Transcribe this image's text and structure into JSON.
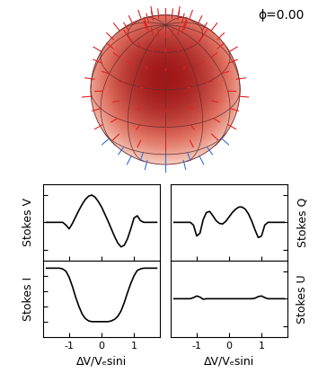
{
  "phase_label": "ϕ=0.00",
  "chart_data": [
    {
      "type": "line",
      "y_label": "Stokes V",
      "color": "#000000",
      "tick_labels": false,
      "x": [
        -1.7,
        -1.6,
        -1.5,
        -1.4,
        -1.3,
        -1.2,
        -1.1,
        -1.0,
        -0.9,
        -0.8,
        -0.7,
        -0.6,
        -0.5,
        -0.4,
        -0.3,
        -0.2,
        -0.1,
        0,
        0.1,
        0.2,
        0.3,
        0.4,
        0.5,
        0.6,
        0.7,
        0.8,
        0.9,
        1.0,
        1.1,
        1.2,
        1.3,
        1.4,
        1.5,
        1.6,
        1.7
      ],
      "values": [
        0,
        0,
        0,
        0,
        0,
        0,
        -0.05,
        -0.12,
        -0.02,
        0.1,
        0.22,
        0.33,
        0.42,
        0.48,
        0.5,
        0.46,
        0.38,
        0.28,
        0.15,
        0.02,
        -0.12,
        -0.26,
        -0.38,
        -0.45,
        -0.42,
        -0.3,
        -0.12,
        0.08,
        0.12,
        0.03,
        0,
        0,
        0,
        0,
        0
      ],
      "xlim": [
        -1.8,
        1.8
      ],
      "xticks": [
        -1,
        0,
        1
      ],
      "ylim": [
        -0.7,
        0.7
      ],
      "yticks": [
        -0.5,
        0,
        0.5
      ]
    },
    {
      "type": "line",
      "y_label": "Stokes Q",
      "color": "#000000",
      "tick_labels": false,
      "x": [
        -1.7,
        -1.6,
        -1.5,
        -1.4,
        -1.3,
        -1.2,
        -1.1,
        -1.0,
        -0.9,
        -0.8,
        -0.7,
        -0.6,
        -0.5,
        -0.4,
        -0.3,
        -0.2,
        -0.1,
        0,
        0.1,
        0.2,
        0.3,
        0.4,
        0.5,
        0.6,
        0.7,
        0.8,
        0.9,
        1.0,
        1.1,
        1.2,
        1.3,
        1.4,
        1.5,
        1.6,
        1.7
      ],
      "values": [
        0,
        0,
        0,
        0,
        0,
        0,
        -0.05,
        -0.25,
        -0.2,
        0.05,
        0.18,
        0.2,
        0.12,
        0.03,
        -0.02,
        -0.03,
        0.02,
        0.1,
        0.18,
        0.24,
        0.28,
        0.28,
        0.24,
        0.15,
        0.02,
        -0.14,
        -0.28,
        -0.25,
        -0.05,
        0,
        0,
        0,
        0,
        0,
        0
      ],
      "xlim": [
        -1.8,
        1.8
      ],
      "xticks": [
        -1,
        0,
        1
      ],
      "ylim": [
        -0.7,
        0.7
      ],
      "yticks": [
        -0.5,
        0,
        0.5
      ]
    },
    {
      "type": "line",
      "y_label": "Stokes I",
      "x_label": "ΔV/Vₑsini",
      "color": "#000000",
      "tick_labels": "x",
      "x": [
        -1.7,
        -1.6,
        -1.5,
        -1.4,
        -1.3,
        -1.2,
        -1.1,
        -1.0,
        -0.9,
        -0.8,
        -0.7,
        -0.6,
        -0.5,
        -0.4,
        -0.3,
        -0.2,
        -0.1,
        0,
        0.1,
        0.2,
        0.3,
        0.4,
        0.5,
        0.6,
        0.7,
        0.8,
        0.9,
        1.0,
        1.1,
        1.2,
        1.3,
        1.4,
        1.5,
        1.6,
        1.7
      ],
      "values": [
        0.9,
        0.9,
        0.9,
        0.9,
        0.9,
        0.89,
        0.86,
        0.78,
        0.66,
        0.52,
        0.4,
        0.3,
        0.24,
        0.21,
        0.2,
        0.2,
        0.2,
        0.2,
        0.2,
        0.2,
        0.21,
        0.23,
        0.27,
        0.34,
        0.45,
        0.58,
        0.7,
        0.8,
        0.87,
        0.89,
        0.9,
        0.9,
        0.9,
        0.9,
        0.9
      ],
      "xlim": [
        -1.8,
        1.8
      ],
      "xticks": [
        -1,
        0,
        1
      ],
      "ylim": [
        0,
        1
      ],
      "yticks": [
        0.2,
        0.4,
        0.6,
        0.8
      ]
    },
    {
      "type": "line",
      "y_label": "Stokes U",
      "x_label": "ΔV/Vₑsini",
      "color": "#000000",
      "tick_labels": "x",
      "x": [
        -1.7,
        -1.6,
        -1.5,
        -1.4,
        -1.3,
        -1.2,
        -1.1,
        -1.0,
        -0.9,
        -0.8,
        -0.7,
        -0.6,
        -0.5,
        -0.4,
        -0.3,
        -0.2,
        -0.1,
        0,
        0.1,
        0.2,
        0.3,
        0.4,
        0.5,
        0.6,
        0.7,
        0.8,
        0.9,
        1.0,
        1.1,
        1.2,
        1.3,
        1.4,
        1.5,
        1.6,
        1.7
      ],
      "values": [
        0,
        0,
        0,
        0,
        0,
        0,
        0.02,
        0.05,
        0.03,
        -0.01,
        0,
        0,
        0,
        0,
        0,
        0,
        0,
        0,
        0,
        0,
        0,
        0,
        0,
        0,
        0,
        0.01,
        0.04,
        0.05,
        0.02,
        0,
        0,
        0,
        0,
        0,
        0
      ],
      "xlim": [
        -1.8,
        1.8
      ],
      "xticks": [
        -1,
        0,
        1
      ],
      "ylim": [
        -0.7,
        0.7
      ],
      "yticks": [
        -0.5,
        0,
        0.5
      ]
    }
  ]
}
